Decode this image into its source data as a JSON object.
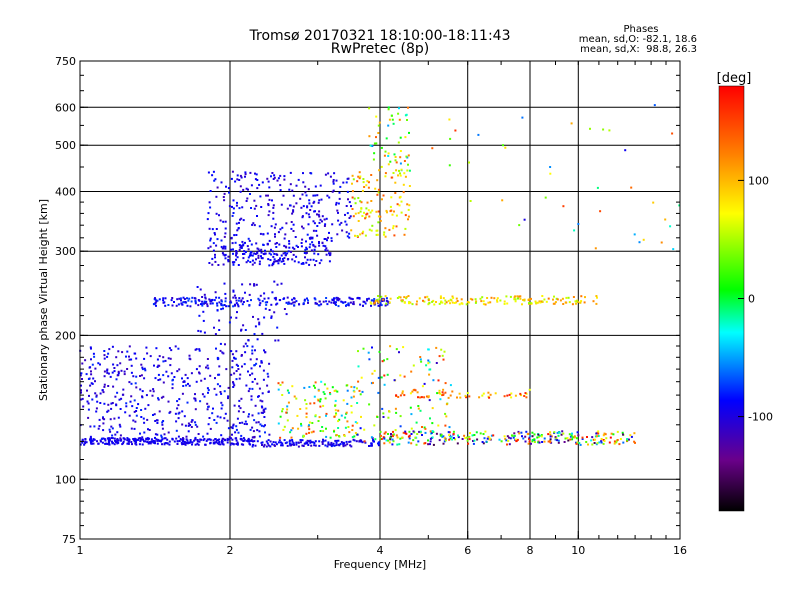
{
  "chart_data": {
    "type": "scatter",
    "title": "Tromsø 20170321 18:10:00-18:11:43",
    "subtitle": "RwPretec (8p)",
    "xlabel": "Frequency [MHz]",
    "ylabel": "Stationary phase Virtual Height [km]",
    "x_scale": "log",
    "y_scale": "log",
    "xlim": [
      1,
      16
    ],
    "ylim": [
      75,
      750
    ],
    "x_ticks": [
      1,
      2,
      4,
      6,
      8,
      10,
      16
    ],
    "x_tick_labels": [
      "1",
      "2",
      "4",
      "6",
      "8",
      "10",
      "16"
    ],
    "y_ticks": [
      75,
      100,
      200,
      300,
      400,
      500,
      600,
      750
    ],
    "y_tick_labels": [
      "75",
      "100",
      "200",
      "300",
      "400",
      "500",
      "600",
      "750"
    ],
    "grid": true,
    "stats": {
      "heading": "Phases",
      "line1": "mean, sd,O: -82.1, 18.6",
      "line2": "mean, sd,X:  98.8, 26.3"
    },
    "colorbar": {
      "label": "[deg]",
      "ticks": [
        100,
        0,
        -100
      ],
      "tick_labels": [
        "100",
        "0",
        "-100"
      ],
      "range": [
        -180,
        180
      ],
      "colors": [
        "#000000",
        "#6a008a",
        "#0000ff",
        "#00ffff",
        "#00ff00",
        "#ffff00",
        "#ff8000",
        "#ff0000"
      ]
    },
    "series": [
      {
        "point_groups": [
          {
            "x": [
              1.0,
              2.2
            ],
            "y": [
              118,
              122
            ],
            "phase": [
              -100,
              -90
            ],
            "n": 260
          },
          {
            "x": [
              2.2,
              4.0
            ],
            "y": [
              117,
              121
            ],
            "phase": [
              -110,
              -80
            ],
            "n": 140
          },
          {
            "x": [
              4.0,
              13.0
            ],
            "y": [
              118,
              126
            ],
            "phase": [
              -160,
              180
            ],
            "n": 280
          },
          {
            "x": [
              1.0,
              2.4
            ],
            "y": [
              120,
              190
            ],
            "phase": [
              -115,
              -75
            ],
            "n": 520
          },
          {
            "x": [
              1.7,
              2.6
            ],
            "y": [
              190,
              260
            ],
            "phase": [
              -110,
              -80
            ],
            "n": 80
          },
          {
            "x": [
              2.5,
              3.6
            ],
            "y": [
              122,
              160
            ],
            "phase": [
              -60,
              160
            ],
            "n": 140
          },
          {
            "x": [
              3.6,
              5.6
            ],
            "y": [
              120,
              190
            ],
            "phase": [
              -120,
              170
            ],
            "n": 120
          },
          {
            "x": [
              4.3,
              8.0
            ],
            "y": [
              148,
              154
            ],
            "phase": [
              60,
              170
            ],
            "n": 60
          },
          {
            "x": [
              1.4,
              4.2
            ],
            "y": [
              230,
              240
            ],
            "phase": [
              -110,
              -70
            ],
            "n": 240
          },
          {
            "x": [
              3.8,
              11.0
            ],
            "y": [
              232,
              242
            ],
            "phase": [
              40,
              130
            ],
            "n": 170
          },
          {
            "x": [
              1.8,
              3.2
            ],
            "y": [
              280,
              320
            ],
            "phase": [
              -110,
              -80
            ],
            "n": 230
          },
          {
            "x": [
              1.8,
              3.5
            ],
            "y": [
              320,
              440
            ],
            "phase": [
              -115,
              -80
            ],
            "n": 260
          },
          {
            "x": [
              3.5,
              4.6
            ],
            "y": [
              320,
              440
            ],
            "phase": [
              40,
              150
            ],
            "n": 120
          },
          {
            "x": [
              3.8,
              4.6
            ],
            "y": [
              440,
              600
            ],
            "phase": [
              -60,
              150
            ],
            "n": 60
          },
          {
            "x": [
              5.0,
              16.0
            ],
            "y": [
              300,
              620
            ],
            "phase": [
              -110,
              160
            ],
            "n": 40
          }
        ]
      }
    ]
  }
}
